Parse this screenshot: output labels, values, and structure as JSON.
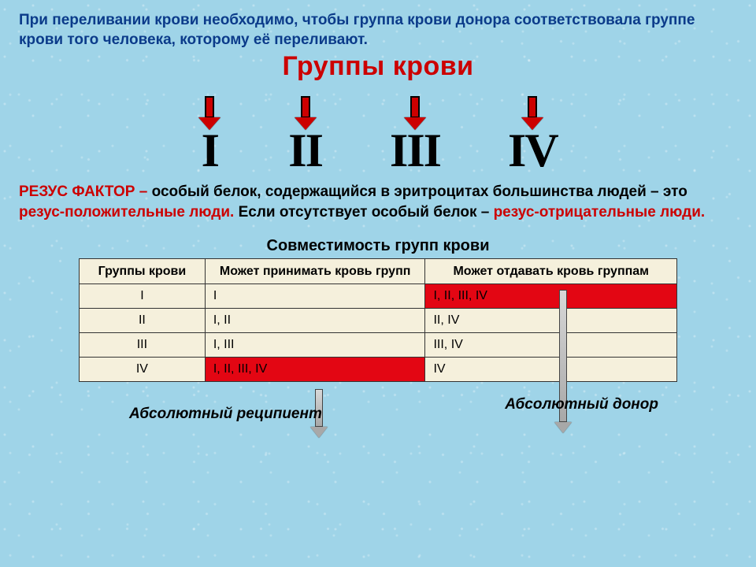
{
  "intro": "При переливании крови необходимо, чтобы группа крови донора соответствовала группе крови того человека, которому её переливают.",
  "title": "Группы крови",
  "groups": [
    "I",
    "II",
    "III",
    "IV"
  ],
  "rhesus": {
    "label": "РЕЗУС ФАКТОР –",
    "t1": " особый белок, содержащийся в эритроцитах большинства людей – это ",
    "pos": "резус-положительные люди.",
    "t2": " Если отсутствует особый белок – ",
    "neg": "резус-отрицательные люди."
  },
  "table": {
    "title": "Совместимость групп крови",
    "headers": [
      "Группы крови",
      "Может принимать кровь групп",
      "Может отдавать кровь группам"
    ],
    "rows": [
      {
        "g": "I",
        "recv": "I",
        "give": "I, II, III, IV",
        "hl_recv": false,
        "hl_give": true
      },
      {
        "g": "II",
        "recv": "I, II",
        "give": "II, IV",
        "hl_recv": false,
        "hl_give": false
      },
      {
        "g": "III",
        "recv": "I, III",
        "give": "III, IV",
        "hl_recv": false,
        "hl_give": false
      },
      {
        "g": "IV",
        "recv": "I, II, III, IV",
        "give": "IV",
        "hl_recv": true,
        "hl_give": false
      }
    ],
    "cell_bg": "#f5f0dc",
    "highlight_bg": "#e30613"
  },
  "labels": {
    "recipient": "Абсолютный реципиент",
    "donor": "Абсолютный донор"
  },
  "colors": {
    "intro_text": "#0b3b8a",
    "title_red": "#cc0000",
    "arrow_red": "#cc0000",
    "background": "#9fd4e8"
  }
}
